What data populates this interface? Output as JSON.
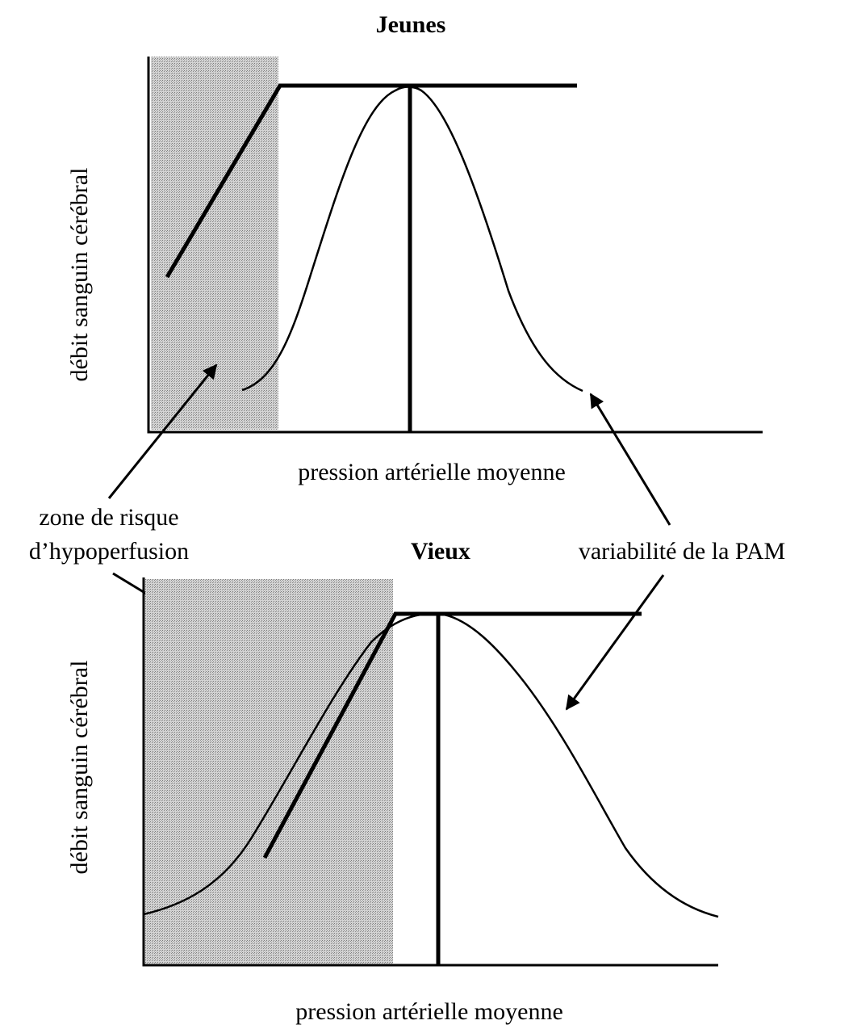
{
  "panels": [
    {
      "title": "Jeunes",
      "y_label": "débit sanguin cérébral",
      "x_label": "pression artérielle moyenne"
    },
    {
      "title": "Vieux",
      "y_label": "débit sanguin cérébral",
      "x_label": "pression artérielle moyenne"
    }
  ],
  "annotations": {
    "hypoperfusion": [
      "zone de risque",
      "d’hypoperfusion"
    ],
    "variability": "variabilité de la PAM"
  }
}
